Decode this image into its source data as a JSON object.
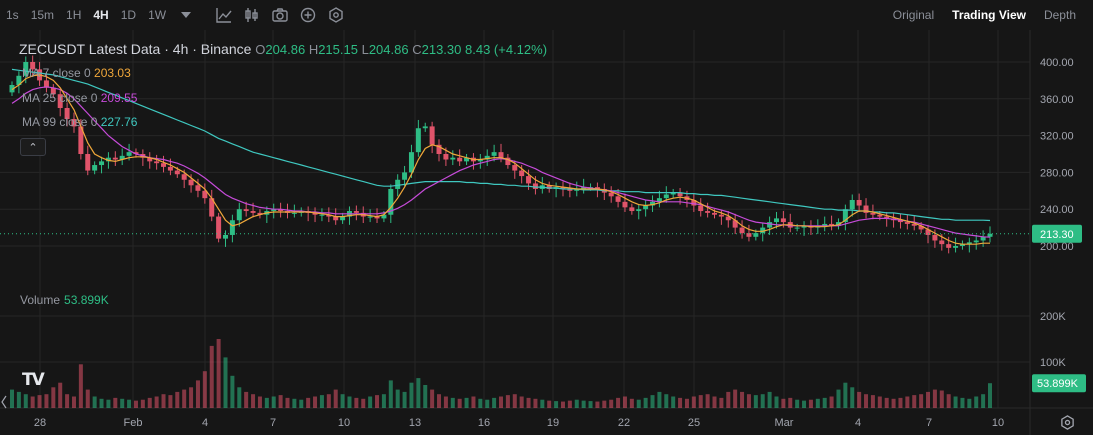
{
  "toolbar": {
    "timeframes": [
      "1s",
      "15m",
      "1H",
      "4H",
      "1D",
      "1W"
    ],
    "active_timeframe": "4H",
    "views": [
      "Original",
      "Trading View",
      "Depth"
    ],
    "active_view": "Trading View"
  },
  "legend": {
    "symbol_title": "ZECUSDT Latest Data · 4h · Binance",
    "o_label": "O",
    "open": "204.86",
    "h_label": "H",
    "high": "215.15",
    "l_label": "L",
    "low": "204.86",
    "c_label": "C",
    "close": "213.30",
    "change": "8.43 (+4.12%)",
    "ma7_label": "MA 7 close 0",
    "ma7_value": "203.03",
    "ma25_label": "MA 25 close 0",
    "ma25_value": "209.55",
    "ma99_label": "MA 99 close 0",
    "ma99_value": "227.76",
    "collapse": "⌃"
  },
  "volume_legend": {
    "label": "Volume",
    "value": "53.899K"
  },
  "logo_text": "TV",
  "colors": {
    "up": "#2ebd85",
    "down": "#e0546a",
    "ma7": "#f0a73a",
    "ma25": "#c64bd9",
    "ma99": "#3fc8c0",
    "background": "#161616",
    "grid": "#262626"
  },
  "chart_data": {
    "type": "candlestick",
    "price_axis": {
      "ticks": [
        400,
        360,
        320,
        280,
        240,
        200
      ],
      "tick_labels": [
        "400.00",
        "360.00",
        "320.00",
        "280.00",
        "240.00",
        "200.00"
      ]
    },
    "volume_axis": {
      "ticks": [
        200000,
        100000
      ],
      "tick_labels": [
        "200K",
        "100K"
      ]
    },
    "x_axis": {
      "tick_labels": [
        "28",
        "Feb",
        "4",
        "7",
        "10",
        "13",
        "16",
        "19",
        "22",
        "25",
        "Mar",
        "4",
        "7",
        "10"
      ]
    },
    "last_price": 213.3,
    "last_price_label": "213.30",
    "last_volume_label": "53.899K",
    "close_series": [
      375,
      385,
      400,
      392,
      380,
      372,
      365,
      350,
      338,
      330,
      300,
      282,
      288,
      292,
      296,
      294,
      298,
      302,
      300,
      296,
      292,
      290,
      286,
      282,
      278,
      272,
      266,
      260,
      252,
      232,
      208,
      212,
      228,
      240,
      238,
      236,
      234,
      238,
      240,
      238,
      236,
      236,
      238,
      236,
      234,
      234,
      232,
      228,
      232,
      238,
      236,
      232,
      232,
      230,
      234,
      262,
      272,
      280,
      302,
      328,
      330,
      310,
      300,
      294,
      296,
      292,
      296,
      292,
      294,
      298,
      302,
      296,
      288,
      282,
      276,
      268,
      262,
      266,
      262,
      264,
      262,
      260,
      262,
      264,
      264,
      262,
      258,
      254,
      248,
      242,
      238,
      240,
      244,
      248,
      252,
      256,
      258,
      254,
      250,
      244,
      238,
      236,
      234,
      232,
      228,
      220,
      214,
      210,
      214,
      220,
      226,
      230,
      226,
      220,
      220,
      222,
      220,
      222,
      224,
      222,
      226,
      240,
      250,
      244,
      236,
      234,
      232,
      230,
      228,
      226,
      224,
      222,
      218,
      212,
      206,
      202,
      198,
      200,
      202,
      204,
      206,
      210,
      213.3
    ],
    "ma7": [
      370,
      375,
      382,
      385,
      386,
      384,
      380,
      372,
      360,
      348,
      330,
      312,
      300,
      296,
      293,
      292,
      294,
      296,
      297,
      297,
      296,
      294,
      291,
      288,
      284,
      280,
      274,
      268,
      262,
      252,
      240,
      228,
      222,
      224,
      228,
      232,
      234,
      236,
      237,
      237,
      237,
      237,
      237,
      237,
      236,
      235,
      234,
      232,
      232,
      233,
      234,
      234,
      233,
      232,
      234,
      242,
      252,
      264,
      278,
      294,
      306,
      310,
      308,
      304,
      300,
      298,
      296,
      294,
      294,
      295,
      296,
      296,
      294,
      290,
      284,
      278,
      272,
      268,
      266,
      265,
      264,
      263,
      262,
      262,
      262,
      262,
      261,
      259,
      256,
      252,
      248,
      245,
      244,
      245,
      247,
      250,
      252,
      253,
      252,
      250,
      246,
      242,
      238,
      236,
      233,
      228,
      222,
      218,
      216,
      216,
      218,
      221,
      223,
      223,
      222,
      222,
      221,
      221,
      221,
      222,
      223,
      228,
      234,
      238,
      238,
      237,
      235,
      233,
      231,
      229,
      227,
      225,
      222,
      218,
      214,
      210,
      206,
      203,
      202,
      202,
      202,
      203,
      203.03
    ],
    "ma25": [
      355,
      360,
      366,
      370,
      372,
      373,
      372,
      370,
      366,
      360,
      352,
      344,
      336,
      328,
      320,
      314,
      308,
      304,
      300,
      298,
      296,
      295,
      294,
      292,
      290,
      287,
      283,
      279,
      274,
      268,
      262,
      256,
      252,
      249,
      246,
      244,
      242,
      241,
      240,
      240,
      239,
      238,
      238,
      237,
      237,
      236,
      236,
      235,
      235,
      235,
      235,
      235,
      235,
      235,
      236,
      238,
      241,
      245,
      250,
      256,
      262,
      266,
      270,
      274,
      278,
      282,
      285,
      288,
      290,
      292,
      294,
      295,
      294,
      292,
      290,
      287,
      284,
      280,
      277,
      274,
      271,
      268,
      266,
      264,
      263,
      262,
      261,
      260,
      258,
      256,
      254,
      252,
      250,
      249,
      248,
      248,
      248,
      248,
      247,
      246,
      245,
      243,
      241,
      239,
      237,
      234,
      231,
      228,
      226,
      225,
      224,
      223,
      223,
      222,
      222,
      222,
      222,
      222,
      222,
      222,
      222,
      224,
      226,
      228,
      229,
      230,
      230,
      230,
      229,
      228,
      227,
      226,
      224,
      222,
      220,
      218,
      216,
      214,
      213,
      212,
      211,
      210,
      209.55
    ],
    "ma99": [
      392,
      391,
      390,
      389,
      388,
      387,
      386,
      384,
      382,
      380,
      378,
      376,
      373,
      370,
      367,
      364,
      361,
      358,
      355,
      352,
      349,
      346,
      343,
      340,
      337,
      334,
      331,
      328,
      325,
      321,
      317,
      314,
      311,
      308,
      305,
      302,
      300,
      298,
      296,
      294,
      292,
      290,
      288,
      286,
      284,
      282,
      280,
      278,
      276,
      274,
      272,
      270,
      268,
      266,
      265,
      265,
      266,
      267,
      268,
      269,
      270,
      270,
      270,
      270,
      270,
      270,
      269,
      269,
      268,
      268,
      267,
      267,
      266,
      266,
      265,
      265,
      264,
      264,
      263,
      263,
      262,
      262,
      262,
      261,
      261,
      261,
      260,
      260,
      260,
      259,
      259,
      259,
      258,
      258,
      258,
      258,
      258,
      258,
      257,
      257,
      256,
      256,
      255,
      255,
      254,
      253,
      252,
      251,
      250,
      249,
      248,
      247,
      246,
      245,
      244,
      243,
      242,
      241,
      240,
      240,
      239,
      239,
      239,
      238,
      238,
      237,
      237,
      236,
      236,
      235,
      234,
      233,
      232,
      231,
      230,
      229,
      229,
      228,
      228,
      228,
      228,
      228,
      227.76
    ],
    "volume_series": [
      40000,
      35000,
      30000,
      25000,
      28000,
      30000,
      45000,
      55000,
      30000,
      25000,
      95000,
      40000,
      25000,
      20000,
      18000,
      22000,
      20000,
      18000,
      16000,
      18000,
      22000,
      25000,
      30000,
      28000,
      35000,
      40000,
      45000,
      60000,
      80000,
      135000,
      150000,
      110000,
      70000,
      45000,
      35000,
      30000,
      25000,
      22000,
      25000,
      28000,
      22000,
      20000,
      18000,
      22000,
      25000,
      28000,
      30000,
      40000,
      30000,
      25000,
      22000,
      20000,
      25000,
      28000,
      30000,
      60000,
      40000,
      35000,
      55000,
      65000,
      50000,
      40000,
      30000,
      25000,
      22000,
      20000,
      22000,
      25000,
      20000,
      18000,
      22000,
      25000,
      28000,
      30000,
      25000,
      22000,
      20000,
      18000,
      16000,
      15000,
      14000,
      16000,
      18000,
      16000,
      15000,
      14000,
      16000,
      18000,
      22000,
      25000,
      20000,
      18000,
      22000,
      28000,
      35000,
      30000,
      25000,
      22000,
      20000,
      25000,
      28000,
      30000,
      25000,
      22000,
      35000,
      40000,
      35000,
      30000,
      28000,
      30000,
      35000,
      25000,
      20000,
      22000,
      18000,
      16000,
      18000,
      20000,
      22000,
      25000,
      40000,
      55000,
      45000,
      35000,
      30000,
      28000,
      25000,
      22000,
      20000,
      22000,
      25000,
      28000,
      30000,
      35000,
      40000,
      38000,
      30000,
      25000,
      22000,
      20000,
      25000,
      30000,
      53899
    ]
  }
}
